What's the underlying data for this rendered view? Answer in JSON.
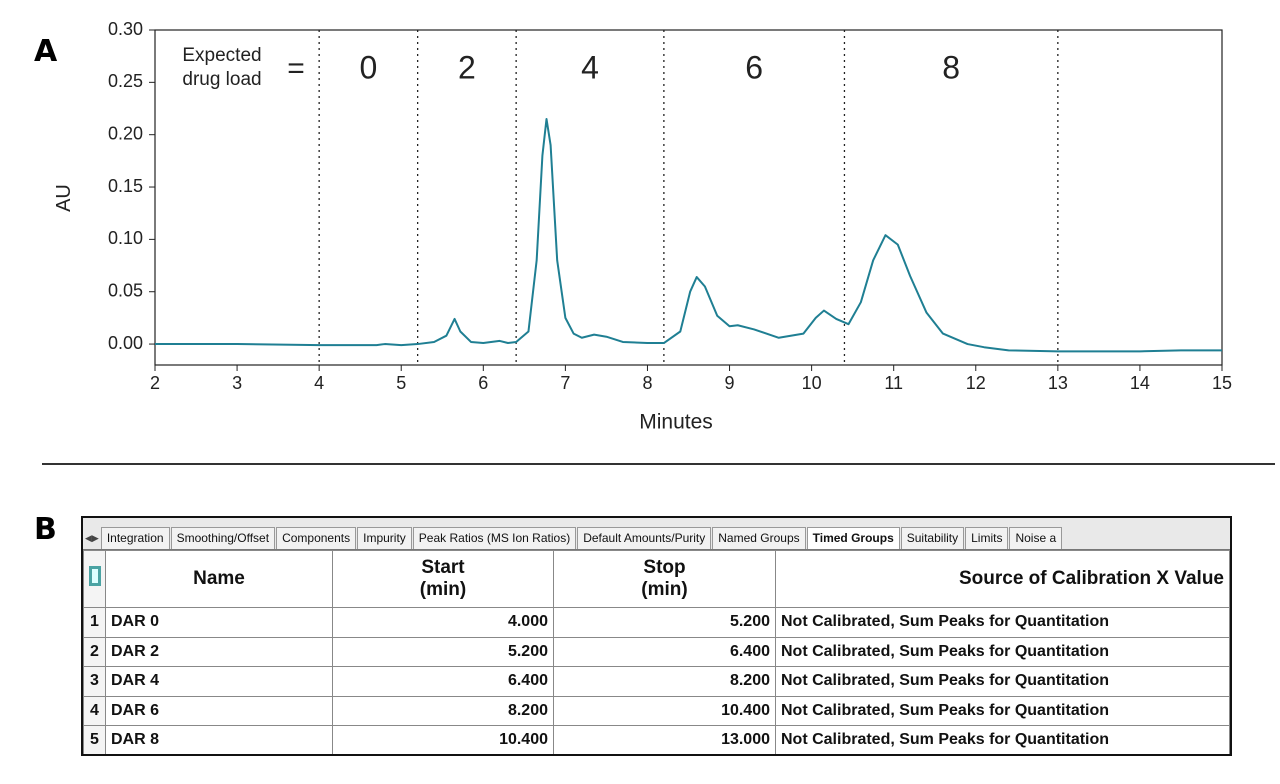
{
  "panel_labels": [
    "A",
    "B"
  ],
  "chart_data": {
    "type": "line",
    "xlabel": "Minutes",
    "ylabel": "AU",
    "annotation": "Expected drug load",
    "annotation_equals": "=",
    "boundaries": [
      4,
      5.2,
      6.4,
      8.2,
      10.4,
      13
    ],
    "group_labels": [
      "0",
      "2",
      "4",
      "6",
      "8"
    ],
    "xlim": [
      2,
      15
    ],
    "xticks": [
      2,
      3,
      4,
      5,
      6,
      7,
      8,
      9,
      10,
      11,
      12,
      13,
      14,
      15
    ],
    "ylim": [
      -0.02,
      0.3
    ],
    "yticks": [
      {
        "value": 0,
        "label": "0.00"
      },
      {
        "value": 0.05,
        "label": "0.05"
      },
      {
        "value": 0.1,
        "label": "0.10"
      },
      {
        "value": 0.15,
        "label": "0.15"
      },
      {
        "value": 0.2,
        "label": "0.20"
      },
      {
        "value": 0.25,
        "label": "0.25"
      },
      {
        "value": 0.3,
        "label": "0.30"
      }
    ],
    "x": [
      2,
      3,
      4,
      4.7,
      4.8,
      5,
      5.2,
      5.4,
      5.55,
      5.65,
      5.72,
      5.85,
      6.0,
      6.2,
      6.3,
      6.4,
      6.55,
      6.65,
      6.72,
      6.77,
      6.82,
      6.9,
      7.0,
      7.1,
      7.2,
      7.35,
      7.5,
      7.7,
      8.0,
      8.2,
      8.4,
      8.52,
      8.6,
      8.7,
      8.85,
      9.0,
      9.1,
      9.3,
      9.6,
      9.9,
      10.05,
      10.15,
      10.3,
      10.45,
      10.6,
      10.75,
      10.9,
      11.05,
      11.2,
      11.4,
      11.6,
      11.9,
      12.1,
      12.4,
      13,
      14,
      14.5,
      15
    ],
    "series": [
      {
        "color": "#1f7f93",
        "values": [
          0,
          0,
          -0.001,
          -0.001,
          0,
          -0.001,
          0,
          0.002,
          0.008,
          0.024,
          0.012,
          0.002,
          0.001,
          0.003,
          0.001,
          0.002,
          0.012,
          0.08,
          0.18,
          0.215,
          0.19,
          0.08,
          0.025,
          0.01,
          0.006,
          0.009,
          0.007,
          0.002,
          0.001,
          0.001,
          0.012,
          0.05,
          0.064,
          0.055,
          0.027,
          0.017,
          0.018,
          0.014,
          0.006,
          0.01,
          0.025,
          0.032,
          0.024,
          0.019,
          0.04,
          0.08,
          0.104,
          0.095,
          0.065,
          0.03,
          0.01,
          0,
          -0.003,
          -0.006,
          -0.007,
          -0.007,
          -0.006,
          -0.006
        ]
      }
    ]
  },
  "table": {
    "tabs": [
      "Integration",
      "Smoothing/Offset",
      "Components",
      "Impurity",
      "Peak Ratios (MS Ion Ratios)",
      "Default Amounts/Purity",
      "Named Groups",
      "Timed Groups",
      "Suitability",
      "Limits",
      "Noise a"
    ],
    "active_tab": 7,
    "headers": [
      "Name",
      "Start\n(min)",
      "Stop\n(min)",
      "Source of Calibration X Value"
    ],
    "rows": [
      [
        "1",
        "DAR 0",
        "4.000",
        "5.200",
        "Not Calibrated, Sum Peaks for Quantitation"
      ],
      [
        "2",
        "DAR 2",
        "5.200",
        "6.400",
        "Not Calibrated, Sum Peaks for Quantitation"
      ],
      [
        "3",
        "DAR 4",
        "6.400",
        "8.200",
        "Not Calibrated, Sum Peaks for Quantitation"
      ],
      [
        "4",
        "DAR 6",
        "8.200",
        "10.400",
        "Not Calibrated, Sum Peaks for Quantitation"
      ],
      [
        "5",
        "DAR 8",
        "10.400",
        "13.000",
        "Not Calibrated, Sum Peaks for Quantitation"
      ]
    ]
  }
}
